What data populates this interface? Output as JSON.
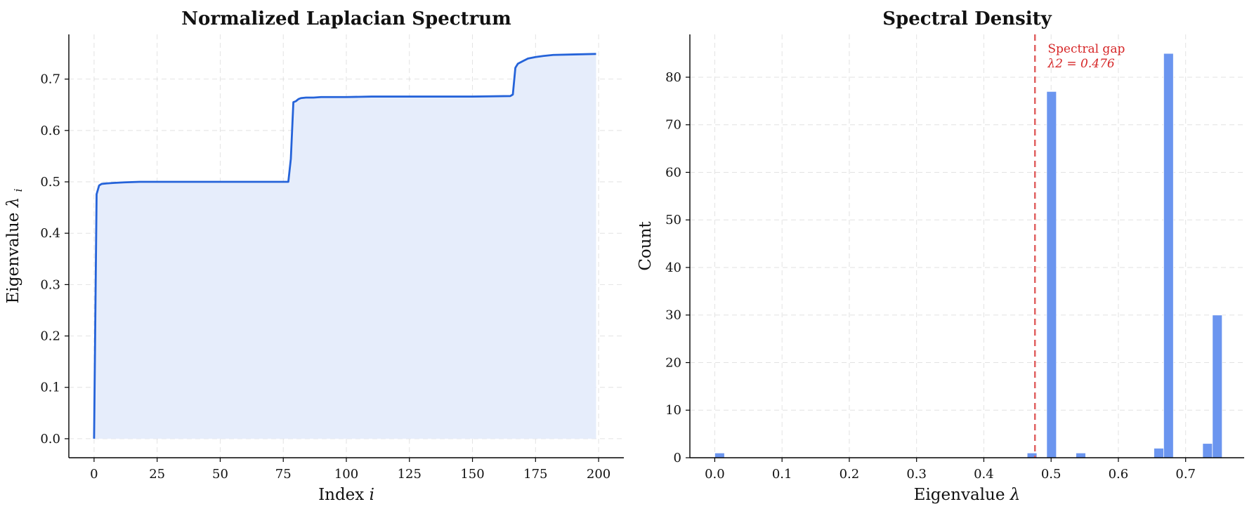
{
  "chart_data": [
    {
      "type": "line",
      "title": "Normalized Laplacian Spectrum",
      "xlabel": "Index i",
      "ylabel": "Eigenvalue λi",
      "xlim": [
        -10,
        210
      ],
      "ylim": [
        -0.037,
        0.787
      ],
      "xticks": [
        0,
        25,
        50,
        75,
        100,
        125,
        150,
        175,
        200
      ],
      "yticks": [
        0.0,
        0.1,
        0.2,
        0.3,
        0.4,
        0.5,
        0.6,
        0.7
      ],
      "grid": true,
      "fill_under": true,
      "line_color": "#2563d9",
      "fill_color": "#e6edfb",
      "series": [
        {
          "x": [
            0,
            1,
            2,
            3,
            5,
            8,
            12,
            18,
            30,
            77,
            78,
            79,
            80,
            81,
            82,
            84,
            87,
            90,
            100,
            110,
            150,
            165,
            166,
            167,
            168,
            170,
            172,
            175,
            178,
            182,
            190,
            199
          ],
          "y": [
            0.0,
            0.476,
            0.493,
            0.496,
            0.497,
            0.498,
            0.499,
            0.5,
            0.5,
            0.5,
            0.545,
            0.655,
            0.657,
            0.661,
            0.663,
            0.664,
            0.664,
            0.665,
            0.665,
            0.666,
            0.666,
            0.667,
            0.67,
            0.722,
            0.73,
            0.735,
            0.74,
            0.743,
            0.745,
            0.747,
            0.748,
            0.749
          ]
        }
      ]
    },
    {
      "type": "bar",
      "title": "Spectral Density",
      "xlabel": "Eigenvalue λ",
      "ylabel": "Count",
      "xlim": [
        -0.037,
        0.787
      ],
      "ylim": [
        0,
        89
      ],
      "xticks": [
        0.0,
        0.1,
        0.2,
        0.3,
        0.4,
        0.5,
        0.6,
        0.7
      ],
      "yticks": [
        0,
        10,
        20,
        30,
        40,
        50,
        60,
        70,
        80
      ],
      "grid": true,
      "bar_color": "#6b95ef",
      "bin_width": 0.0145,
      "bins": [
        {
          "left": 0.0,
          "count": 1
        },
        {
          "left": 0.4644,
          "count": 1
        },
        {
          "left": 0.4934,
          "count": 77
        },
        {
          "left": 0.5369,
          "count": 1
        },
        {
          "left": 0.6528,
          "count": 2
        },
        {
          "left": 0.6673,
          "count": 85
        },
        {
          "left": 0.7253,
          "count": 3
        },
        {
          "left": 0.7398,
          "count": 30
        }
      ],
      "marker_line": {
        "x": 0.476,
        "color": "#e06060"
      },
      "annotation": {
        "line1": "Spectral gap",
        "line2": "λ2 = 0.476",
        "x": 0.495,
        "y": 85
      }
    }
  ]
}
